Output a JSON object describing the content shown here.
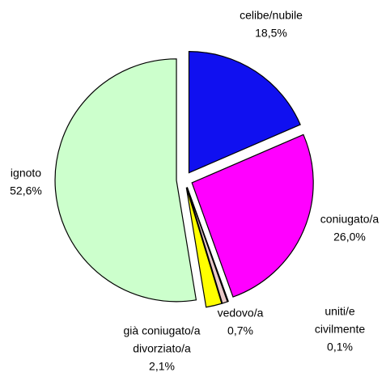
{
  "chart_data": {
    "type": "pie",
    "categories": [
      [
        "celibe/nubile"
      ],
      [
        "coniugato/a"
      ],
      [
        "uniti/e",
        "civilmente"
      ],
      [
        "vedovo/a"
      ],
      [
        "già coniugato/a",
        "divorziato/a"
      ],
      [
        "ignoto"
      ]
    ],
    "values": [
      18.5,
      26.0,
      0.1,
      0.7,
      2.1,
      52.6
    ],
    "value_labels": [
      "18,5%",
      "26,0%",
      "0,1%",
      "0,7%",
      "2,1%",
      "52,6%"
    ],
    "colors": [
      "#1010f0",
      "#ff00ff",
      "#8080ff",
      "#e8c8c8",
      "#ffff00",
      "#ccffcc"
    ]
  }
}
